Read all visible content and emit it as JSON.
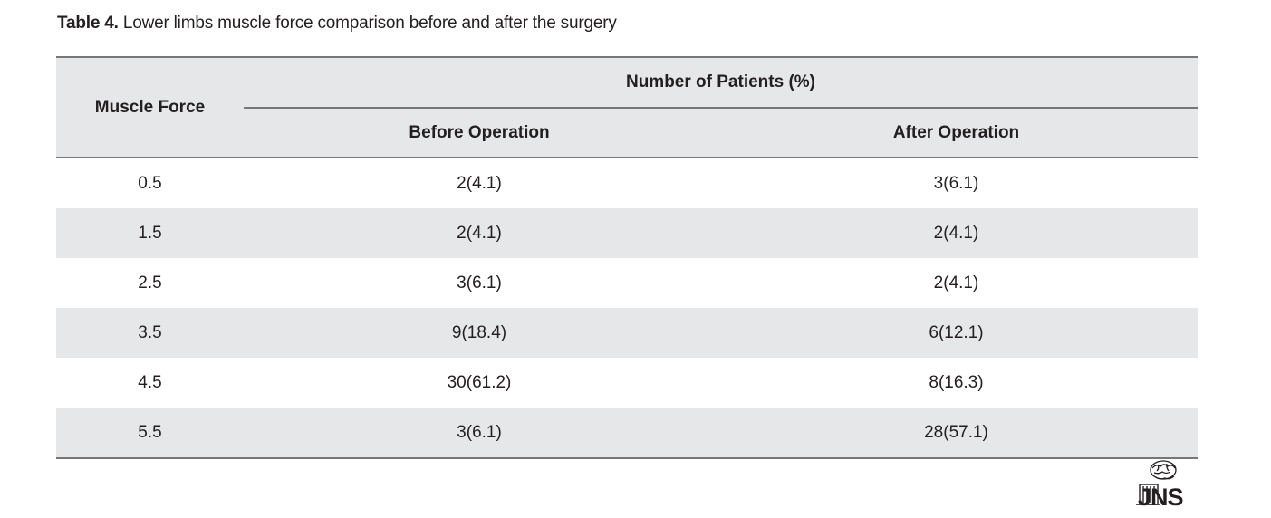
{
  "caption": {
    "label": "Table 4.",
    "text": " Lower limbs muscle force comparison before and after the surgery"
  },
  "table": {
    "row_header": "Muscle Force",
    "group_header": "Number of Patients (%)",
    "col_headers": [
      "Before Operation",
      "After Operation"
    ],
    "rows": [
      {
        "force": "0.5",
        "before": "2(4.1)",
        "after": "3(6.1)"
      },
      {
        "force": "1.5",
        "before": "2(4.1)",
        "after": "2(4.1)"
      },
      {
        "force": "2.5",
        "before": "3(6.1)",
        "after": "2(4.1)"
      },
      {
        "force": "3.5",
        "before": "9(18.4)",
        "after": "6(12.1)"
      },
      {
        "force": "4.5",
        "before": "30(61.2)",
        "after": "8(16.3)"
      },
      {
        "force": "5.5",
        "before": "3(6.1)",
        "after": "28(57.1)"
      }
    ]
  },
  "logo": {
    "text": "JNS",
    "icon": "brain-logo-icon"
  }
}
